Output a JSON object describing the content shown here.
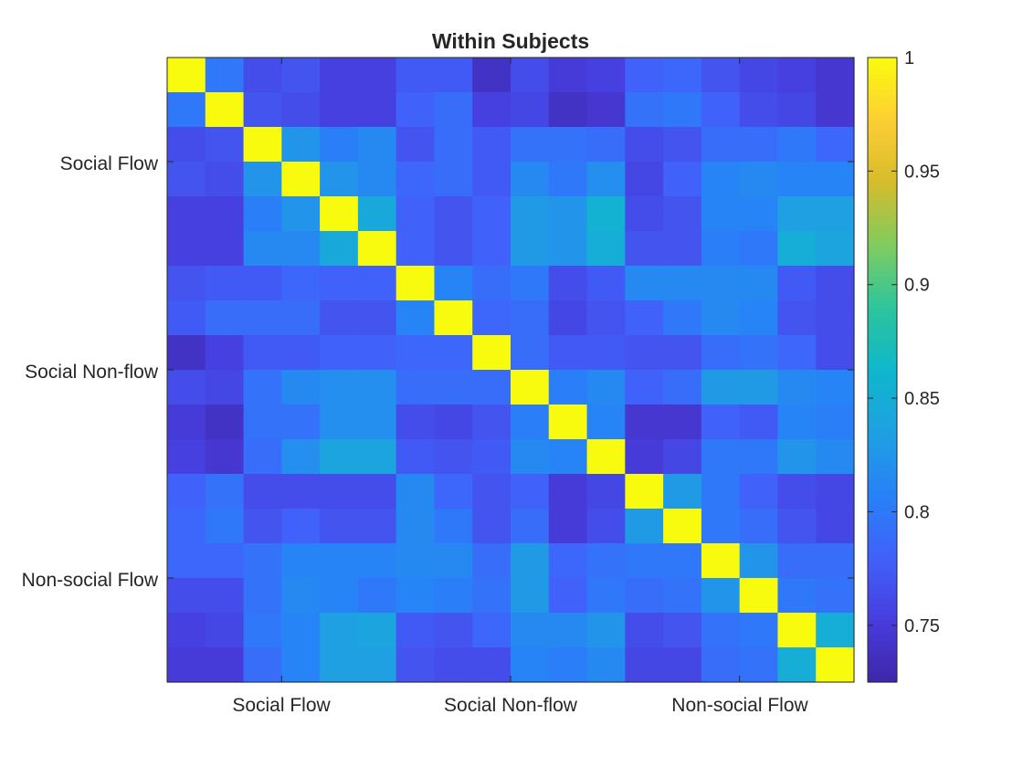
{
  "chart_data": {
    "type": "heatmap",
    "title": "Within Subjects",
    "xlabel": "",
    "ylabel": "",
    "xtick_labels": [
      "Social Flow",
      "Social Non-flow",
      "Non-social Flow"
    ],
    "ytick_labels": [
      "Social Flow",
      "Social Non-flow",
      "Non-social Flow"
    ],
    "grid": false,
    "colormap": "parula",
    "clim": [
      0.725,
      1.0
    ],
    "colorbar": {
      "ticks": [
        0.75,
        0.8,
        0.85,
        0.9,
        0.95,
        1
      ],
      "tick_labels": [
        "0.75",
        "0.8",
        "0.85",
        "0.9",
        "0.95",
        "1"
      ],
      "location": "right"
    },
    "values": [
      [
        1.0,
        0.8,
        0.765,
        0.77,
        0.755,
        0.755,
        0.775,
        0.775,
        0.74,
        0.765,
        0.75,
        0.755,
        0.78,
        0.785,
        0.77,
        0.76,
        0.755,
        0.745
      ],
      [
        0.8,
        1.0,
        0.77,
        0.765,
        0.755,
        0.755,
        0.78,
        0.79,
        0.755,
        0.76,
        0.74,
        0.745,
        0.795,
        0.8,
        0.78,
        0.765,
        0.76,
        0.745
      ],
      [
        0.765,
        0.77,
        1.0,
        0.825,
        0.805,
        0.815,
        0.77,
        0.79,
        0.775,
        0.795,
        0.795,
        0.79,
        0.765,
        0.77,
        0.79,
        0.79,
        0.8,
        0.785
      ],
      [
        0.77,
        0.765,
        0.825,
        1.0,
        0.825,
        0.815,
        0.785,
        0.79,
        0.775,
        0.815,
        0.8,
        0.82,
        0.76,
        0.78,
        0.81,
        0.815,
        0.81,
        0.81
      ],
      [
        0.755,
        0.755,
        0.805,
        0.825,
        1.0,
        0.845,
        0.78,
        0.77,
        0.78,
        0.83,
        0.825,
        0.855,
        0.765,
        0.77,
        0.81,
        0.81,
        0.835,
        0.835
      ],
      [
        0.755,
        0.755,
        0.815,
        0.815,
        0.845,
        1.0,
        0.78,
        0.77,
        0.78,
        0.83,
        0.825,
        0.85,
        0.77,
        0.77,
        0.805,
        0.8,
        0.85,
        0.84
      ],
      [
        0.77,
        0.775,
        0.775,
        0.785,
        0.78,
        0.78,
        1.0,
        0.81,
        0.79,
        0.8,
        0.765,
        0.775,
        0.815,
        0.815,
        0.815,
        0.815,
        0.775,
        0.765
      ],
      [
        0.775,
        0.79,
        0.79,
        0.79,
        0.77,
        0.77,
        0.81,
        1.0,
        0.785,
        0.79,
        0.76,
        0.77,
        0.78,
        0.8,
        0.815,
        0.81,
        0.77,
        0.765
      ],
      [
        0.74,
        0.755,
        0.775,
        0.775,
        0.78,
        0.78,
        0.785,
        0.785,
        1.0,
        0.79,
        0.775,
        0.775,
        0.77,
        0.77,
        0.79,
        0.795,
        0.785,
        0.765
      ],
      [
        0.765,
        0.76,
        0.795,
        0.815,
        0.82,
        0.82,
        0.79,
        0.79,
        0.79,
        1.0,
        0.805,
        0.815,
        0.78,
        0.79,
        0.83,
        0.83,
        0.815,
        0.81
      ],
      [
        0.75,
        0.74,
        0.795,
        0.795,
        0.82,
        0.82,
        0.765,
        0.76,
        0.77,
        0.805,
        1.0,
        0.81,
        0.745,
        0.745,
        0.78,
        0.775,
        0.81,
        0.805
      ],
      [
        0.755,
        0.745,
        0.79,
        0.82,
        0.84,
        0.84,
        0.775,
        0.77,
        0.775,
        0.815,
        0.81,
        1.0,
        0.75,
        0.76,
        0.8,
        0.8,
        0.825,
        0.815
      ],
      [
        0.78,
        0.795,
        0.765,
        0.765,
        0.765,
        0.765,
        0.815,
        0.785,
        0.77,
        0.78,
        0.75,
        0.76,
        1.0,
        0.83,
        0.8,
        0.78,
        0.765,
        0.76
      ],
      [
        0.785,
        0.8,
        0.77,
        0.78,
        0.77,
        0.77,
        0.815,
        0.8,
        0.77,
        0.79,
        0.75,
        0.765,
        0.83,
        1.0,
        0.8,
        0.79,
        0.77,
        0.76
      ],
      [
        0.785,
        0.785,
        0.795,
        0.81,
        0.81,
        0.81,
        0.815,
        0.815,
        0.79,
        0.83,
        0.785,
        0.795,
        0.8,
        0.8,
        1.0,
        0.825,
        0.79,
        0.79
      ],
      [
        0.765,
        0.765,
        0.795,
        0.815,
        0.81,
        0.8,
        0.81,
        0.805,
        0.795,
        0.83,
        0.78,
        0.8,
        0.79,
        0.795,
        0.825,
        1.0,
        0.8,
        0.795
      ],
      [
        0.755,
        0.76,
        0.8,
        0.81,
        0.835,
        0.84,
        0.775,
        0.77,
        0.785,
        0.815,
        0.815,
        0.825,
        0.765,
        0.77,
        0.795,
        0.8,
        1.0,
        0.85
      ],
      [
        0.75,
        0.75,
        0.79,
        0.81,
        0.835,
        0.835,
        0.77,
        0.765,
        0.765,
        0.81,
        0.805,
        0.815,
        0.76,
        0.76,
        0.79,
        0.795,
        0.85,
        1.0
      ]
    ]
  }
}
